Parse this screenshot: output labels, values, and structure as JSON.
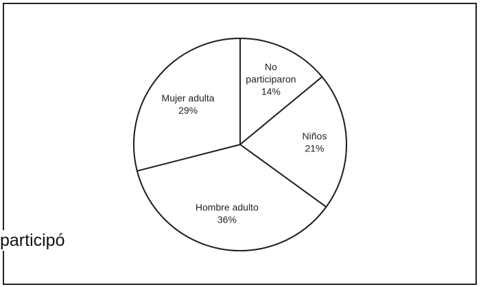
{
  "chart_data": {
    "type": "pie",
    "slices": [
      {
        "label_lines": [
          "No",
          "participaron"
        ],
        "percent_label": "14%",
        "value": 14
      },
      {
        "label_lines": [
          "Niños"
        ],
        "percent_label": "21%",
        "value": 21
      },
      {
        "label_lines": [
          "Hombre adulto"
        ],
        "percent_label": "36%",
        "value": 36
      },
      {
        "label_lines": [
          "Mujer adulta"
        ],
        "percent_label": "29%",
        "value": 29
      }
    ],
    "start_angle_deg": 0,
    "direction": "clockwise",
    "slice_fill": "#ffffff",
    "stroke_color": "#222222"
  },
  "background_text": "participó"
}
